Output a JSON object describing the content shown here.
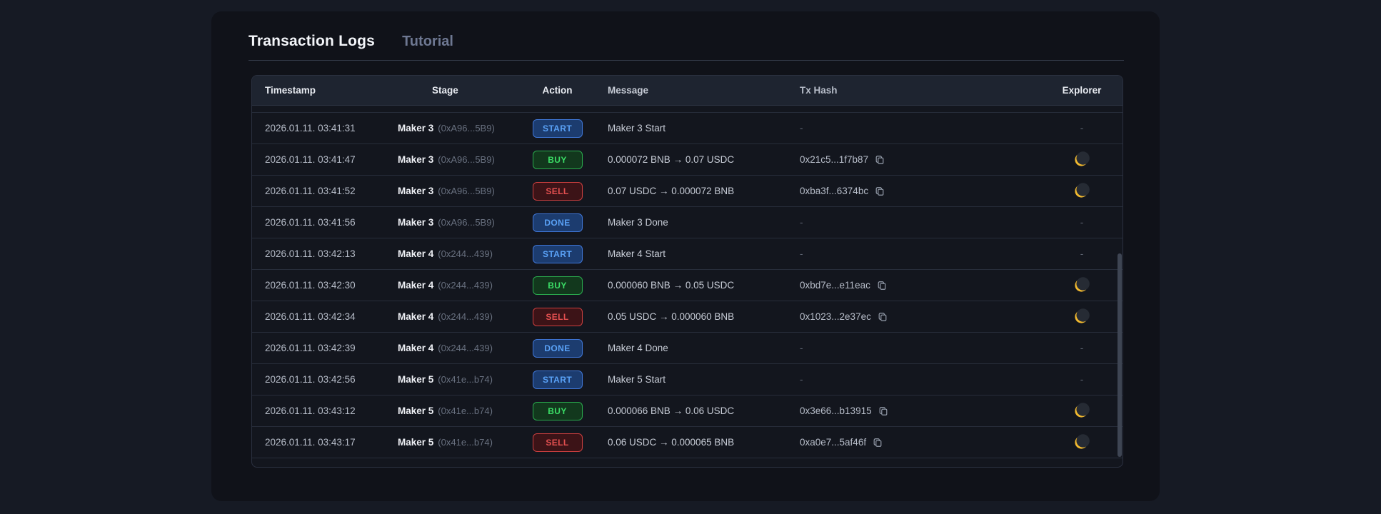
{
  "header": {
    "title": "Transaction Logs",
    "tutorial_label": "Tutorial"
  },
  "table": {
    "columns": [
      "Timestamp",
      "Stage",
      "Action",
      "Message",
      "Tx Hash",
      "Explorer"
    ],
    "empty_placeholder": "-",
    "rows": [
      {
        "timestamp": "2026.01.11. 03:41:31",
        "stage": "Maker 3",
        "stage_address": "(0xA96...5B9)",
        "action": "START",
        "variant": "info",
        "message": "Maker 3 Start",
        "tx_hash": null,
        "explorer": false
      },
      {
        "timestamp": "2026.01.11. 03:41:47",
        "stage": "Maker 3",
        "stage_address": "(0xA96...5B9)",
        "action": "BUY",
        "variant": "buy",
        "message": "0.000072 BNB → 0.07 USDC",
        "tx_hash": "0x21c5...1f7b87",
        "explorer": true
      },
      {
        "timestamp": "2026.01.11. 03:41:52",
        "stage": "Maker 3",
        "stage_address": "(0xA96...5B9)",
        "action": "SELL",
        "variant": "sell",
        "message": "0.07 USDC → 0.000072 BNB",
        "tx_hash": "0xba3f...6374bc",
        "explorer": true
      },
      {
        "timestamp": "2026.01.11. 03:41:56",
        "stage": "Maker 3",
        "stage_address": "(0xA96...5B9)",
        "action": "DONE",
        "variant": "info",
        "message": "Maker 3 Done",
        "tx_hash": null,
        "explorer": false
      },
      {
        "timestamp": "2026.01.11. 03:42:13",
        "stage": "Maker 4",
        "stage_address": "(0x244...439)",
        "action": "START",
        "variant": "info",
        "message": "Maker 4 Start",
        "tx_hash": null,
        "explorer": false
      },
      {
        "timestamp": "2026.01.11. 03:42:30",
        "stage": "Maker 4",
        "stage_address": "(0x244...439)",
        "action": "BUY",
        "variant": "buy",
        "message": "0.000060 BNB → 0.05 USDC",
        "tx_hash": "0xbd7e...e11eac",
        "explorer": true
      },
      {
        "timestamp": "2026.01.11. 03:42:34",
        "stage": "Maker 4",
        "stage_address": "(0x244...439)",
        "action": "SELL",
        "variant": "sell",
        "message": "0.05 USDC → 0.000060 BNB",
        "tx_hash": "0x1023...2e37ec",
        "explorer": true
      },
      {
        "timestamp": "2026.01.11. 03:42:39",
        "stage": "Maker 4",
        "stage_address": "(0x244...439)",
        "action": "DONE",
        "variant": "info",
        "message": "Maker 4 Done",
        "tx_hash": null,
        "explorer": false
      },
      {
        "timestamp": "2026.01.11. 03:42:56",
        "stage": "Maker 5",
        "stage_address": "(0x41e...b74)",
        "action": "START",
        "variant": "info",
        "message": "Maker 5 Start",
        "tx_hash": null,
        "explorer": false
      },
      {
        "timestamp": "2026.01.11. 03:43:12",
        "stage": "Maker 5",
        "stage_address": "(0x41e...b74)",
        "action": "BUY",
        "variant": "buy",
        "message": "0.000066 BNB → 0.06 USDC",
        "tx_hash": "0x3e66...b13915",
        "explorer": true
      },
      {
        "timestamp": "2026.01.11. 03:43:17",
        "stage": "Maker 5",
        "stage_address": "(0x41e...b74)",
        "action": "SELL",
        "variant": "sell",
        "message": "0.06 USDC → 0.000065 BNB",
        "tx_hash": "0xa0e7...5af46f",
        "explorer": true
      }
    ]
  },
  "colors": {
    "page_background": "#161a24",
    "card_background": "#101219",
    "table_header_background": "#1e2430",
    "badge_info_border": "#3f76d6",
    "badge_buy_border": "#2aa94d",
    "badge_sell_border": "#cb3f3f",
    "explorer_icon_yellow": "#f3ba2f"
  }
}
